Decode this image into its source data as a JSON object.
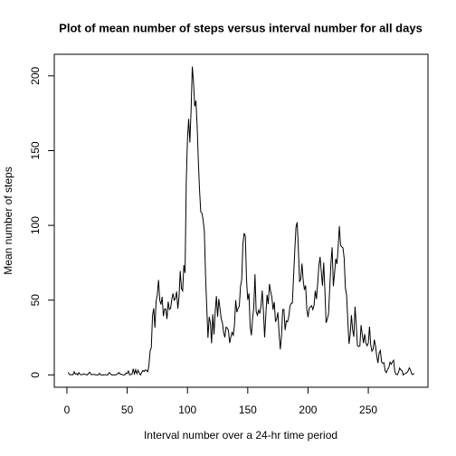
{
  "chart_data": {
    "type": "line",
    "title": "Plot of mean number of steps versus interval number for all days",
    "x_label": "Interval number over a 24-hr time period",
    "y_label": "Mean number of steps",
    "xlim": [
      -10.48,
      299.48
    ],
    "xticks": [
      0,
      50,
      100,
      150,
      200,
      250
    ],
    "ylim": [
      -8.25,
      214.42
    ],
    "yticks": [
      0,
      50,
      100,
      150,
      200
    ],
    "x": [
      1,
      2,
      3,
      4,
      5,
      6,
      7,
      8,
      9,
      10,
      11,
      12,
      13,
      14,
      15,
      16,
      17,
      18,
      19,
      20,
      21,
      22,
      23,
      24,
      25,
      26,
      27,
      28,
      29,
      30,
      31,
      32,
      33,
      34,
      35,
      36,
      37,
      38,
      39,
      40,
      41,
      42,
      43,
      44,
      45,
      46,
      47,
      48,
      49,
      50,
      51,
      52,
      53,
      54,
      55,
      56,
      57,
      58,
      59,
      60,
      61,
      62,
      63,
      64,
      65,
      66,
      67,
      68,
      69,
      70,
      71,
      72,
      73,
      74,
      75,
      76,
      77,
      78,
      79,
      80,
      81,
      82,
      83,
      84,
      85,
      86,
      87,
      88,
      89,
      90,
      91,
      92,
      93,
      94,
      95,
      96,
      97,
      98,
      99,
      100,
      101,
      102,
      103,
      104,
      105,
      106,
      107,
      108,
      109,
      110,
      111,
      112,
      113,
      114,
      115,
      116,
      117,
      118,
      119,
      120,
      121,
      122,
      123,
      124,
      125,
      126,
      127,
      128,
      129,
      130,
      131,
      132,
      133,
      134,
      135,
      136,
      137,
      138,
      139,
      140,
      141,
      142,
      143,
      144,
      145,
      146,
      147,
      148,
      149,
      150,
      151,
      152,
      153,
      154,
      155,
      156,
      157,
      158,
      159,
      160,
      161,
      162,
      163,
      164,
      165,
      166,
      167,
      168,
      169,
      170,
      171,
      172,
      173,
      174,
      175,
      176,
      177,
      178,
      179,
      180,
      181,
      182,
      183,
      184,
      185,
      186,
      187,
      188,
      189,
      190,
      191,
      192,
      193,
      194,
      195,
      196,
      197,
      198,
      199,
      200,
      201,
      202,
      203,
      204,
      205,
      206,
      207,
      208,
      209,
      210,
      211,
      212,
      213,
      214,
      215,
      216,
      217,
      218,
      219,
      220,
      221,
      222,
      223,
      224,
      225,
      226,
      227,
      228,
      229,
      230,
      231,
      232,
      233,
      234,
      235,
      236,
      237,
      238,
      239,
      240,
      241,
      242,
      243,
      244,
      245,
      246,
      247,
      248,
      249,
      250,
      251,
      252,
      253,
      254,
      255,
      256,
      257,
      258,
      259,
      260,
      261,
      262,
      263,
      264,
      265,
      266,
      267,
      268,
      269,
      270,
      271,
      272,
      273,
      274,
      275,
      276,
      277,
      278,
      279,
      280,
      281,
      282,
      283,
      284,
      285,
      286,
      287,
      288
    ],
    "series": [
      {
        "color": "#000000",
        "values": [
          1.7,
          0.3,
          0.1,
          0.2,
          0.1,
          2.1,
          0.5,
          0.9,
          0,
          1.5,
          0.3,
          0.1,
          0.3,
          0.7,
          0.2,
          0.3,
          0,
          1.1,
          1.8,
          0.2,
          0.2,
          0.4,
          0.3,
          0,
          0,
          0,
          1.1,
          0,
          0,
          0.1,
          0,
          0.2,
          0,
          0,
          1.5,
          0.9,
          0,
          0,
          0,
          0,
          0.2,
          0.6,
          1.6,
          0.6,
          0.5,
          0.1,
          0,
          0,
          1.2,
          0.9,
          2.6,
          0,
          0.3,
          0.4,
          4.1,
          0.7,
          3.5,
          0.8,
          3.1,
          1.1,
          0,
          1.6,
          3,
          2.2,
          3.3,
          3,
          2.1,
          6.1,
          16,
          18.3,
          39.5,
          44.5,
          31.5,
          49.3,
          53.8,
          63.5,
          50,
          47.1,
          52.2,
          39.3,
          44,
          44.2,
          37.4,
          49,
          43.8,
          44.4,
          50.5,
          54.5,
          49.9,
          51,
          55.7,
          44.3,
          52.3,
          69.5,
          57.8,
          56.2,
          73.4,
          68.2,
          129.4,
          157.5,
          171.2,
          155.4,
          177.3,
          206.2,
          195.9,
          179.6,
          183.4,
          167,
          143.5,
          124,
          109.1,
          108.1,
          103.7,
          96,
          66.2,
          45.2,
          24.8,
          38.8,
          35,
          21.1,
          40.6,
          27,
          42.4,
          52.7,
          38.9,
          50.8,
          44.3,
          37.4,
          34.7,
          28.3,
          25.1,
          31.9,
          31.4,
          29.7,
          21.3,
          25.5,
          28.4,
          26.5,
          33.4,
          50,
          42,
          44.6,
          46,
          59.2,
          63.9,
          87.7,
          94.8,
          92.8,
          63.4,
          50.2,
          54.5,
          32.4,
          26.5,
          37.7,
          45.1,
          67.3,
          42.3,
          39.9,
          43.3,
          41,
          46.2,
          56.4,
          42.8,
          25.1,
          40,
          53.5,
          47.3,
          60.8,
          55.8,
          52,
          43.6,
          48.7,
          35.5,
          37.5,
          41.8,
          27.5,
          17.1,
          26.1,
          43.6,
          43.8,
          30,
          36.1,
          35.5,
          38.8,
          46,
          47.8,
          48.1,
          65.3,
          82.9,
          98.7,
          102.1,
          84,
          62.1,
          64.1,
          74.5,
          63.2,
          56.9,
          59.8,
          43.9,
          38.6,
          44.7,
          45.5,
          46.2,
          43.7,
          46.6,
          56.3,
          50.7,
          61.2,
          72.7,
          78.9,
          68.9,
          59.7,
          75.1,
          56.5,
          34.8,
          37.5,
          40.7,
          58,
          74.7,
          85.3,
          59.3,
          67.8,
          77.7,
          74.2,
          85.3,
          99.5,
          86.6,
          85.6,
          84.9,
          77.8,
          58,
          53.4,
          36.3,
          20.7,
          27.4,
          40,
          30.2,
          25.5,
          45.7,
          33.5,
          19.6,
          19,
          19.3,
          33.3,
          26.8,
          21.2,
          27.3,
          21.3,
          19.5,
          21.3,
          32.3,
          20.2,
          15.9,
          17.2,
          23.5,
          19.2,
          12.5,
          8,
          14.7,
          16.3,
          8.7,
          7.8,
          8.1,
          2.6,
          1.5,
          3.7,
          4.8,
          8.5,
          7.1,
          8.7,
          9.8,
          2.2,
          0.3,
          0.1,
          1.6,
          4.6,
          3.3,
          2.8,
          0,
          0.8,
          1,
          1.6,
          2.6,
          4.7,
          3.3,
          0.6,
          0.2,
          1.1
        ]
      }
    ]
  }
}
